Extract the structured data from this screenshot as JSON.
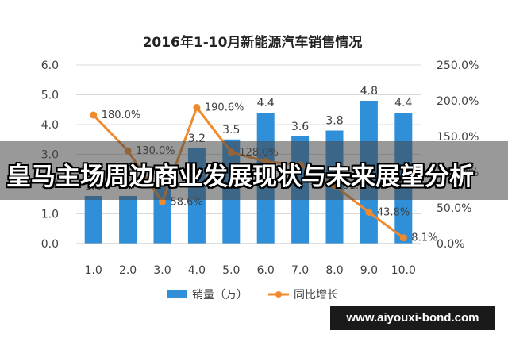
{
  "chart_data": {
    "type": "bar+line",
    "title": "2016年1-10月新能源汽车销售情况",
    "categories": [
      "1.0",
      "2.0",
      "3.0",
      "4.0",
      "5.0",
      "6.0",
      "7.0",
      "8.0",
      "9.0",
      "10.0"
    ],
    "series": [
      {
        "name": "销量（万）",
        "type": "bar",
        "axis": "left",
        "values": [
          1.6,
          1.6,
          2.0,
          3.2,
          3.5,
          4.4,
          3.6,
          3.8,
          4.8,
          4.4
        ],
        "labels": [
          "1.6",
          "",
          "",
          "3.2",
          "3.5",
          "4.4",
          "3.6",
          "3.8",
          "4.8",
          "4.4"
        ],
        "color": "#2f8fd8"
      },
      {
        "name": "同比增长",
        "type": "line",
        "axis": "right",
        "values": [
          180.0,
          130.0,
          58.6,
          190.6,
          128.0,
          115.0,
          110.0,
          81.3,
          43.8,
          8.1
        ],
        "labels": [
          "180.0%",
          "130.0%",
          "58.6%",
          "190.6%",
          "128.0%",
          "",
          "",
          "81.3%",
          "43.8%",
          "8.1%"
        ],
        "color": "#f08a2c"
      }
    ],
    "y_left": {
      "ylim": [
        0,
        6.0
      ],
      "ticks": [
        "0.0",
        "1.0",
        "2.0",
        "3.0",
        "4.0",
        "5.0",
        "6.0"
      ]
    },
    "y_right": {
      "ylim": [
        0,
        250
      ],
      "ticks": [
        "0.0%",
        "50.0%",
        "100.0%",
        "150.0%",
        "200.0%",
        "250.0%"
      ]
    },
    "grid": true,
    "legend_position": "bottom"
  },
  "overlay": {
    "banner_text": "皇马主场周边商业发展现状与未来展望分析",
    "url_text": "www.aiyouxi-bond.com"
  },
  "colors": {
    "bar": "#2f8fd8",
    "line": "#f08a2c",
    "grid": "#d9d9d9",
    "text": "#404040"
  }
}
